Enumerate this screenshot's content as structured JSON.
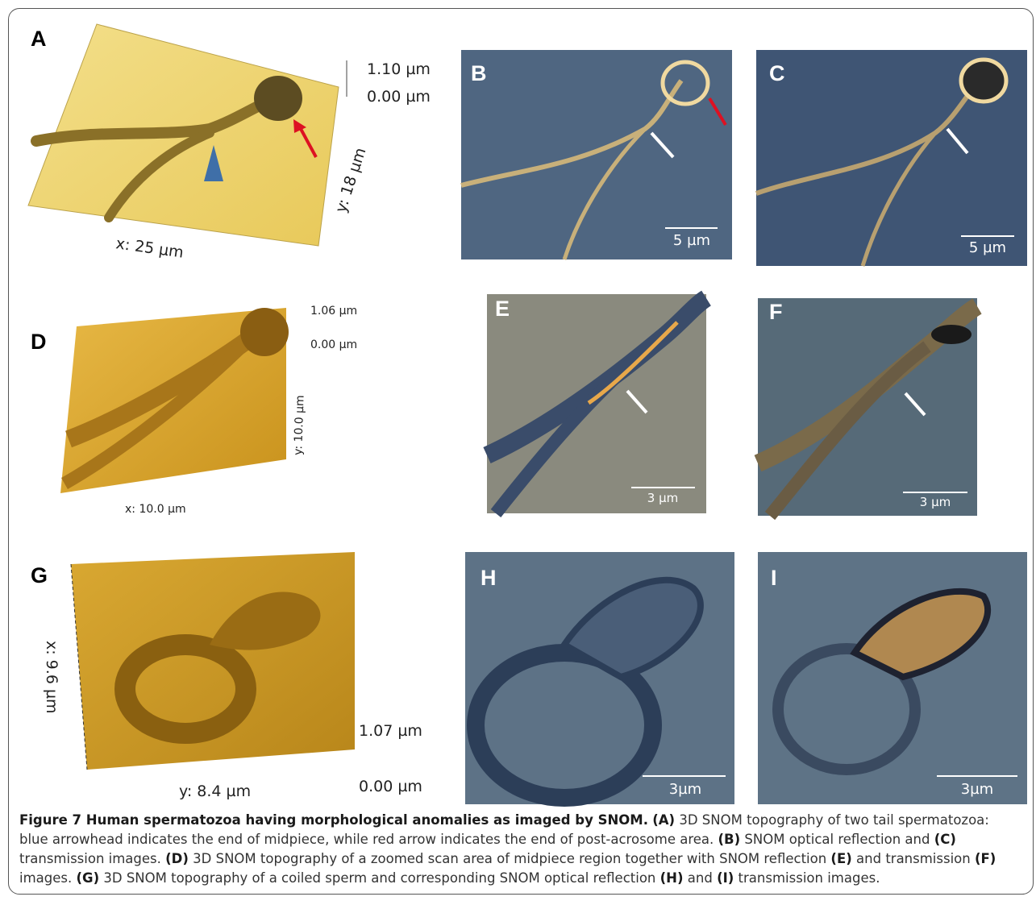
{
  "panels": {
    "a": {
      "label": "A",
      "z_top": "1.10 µm",
      "z_bottom": "0.00 µm",
      "y_axis": "y: 18 µm",
      "x_axis": "x: 25 µm"
    },
    "b": {
      "label": "B",
      "scale": "5 µm"
    },
    "c": {
      "label": "C",
      "scale": "5 µm"
    },
    "d": {
      "label": "D",
      "z_top": "1.06 µm",
      "z_bottom": "0.00 µm",
      "y_axis": "y: 10.0 µm",
      "x_axis": "x: 10.0 µm"
    },
    "e": {
      "label": "E",
      "scale": "3 µm"
    },
    "f": {
      "label": "F",
      "scale": "3 µm"
    },
    "g": {
      "label": "G",
      "x_axis": "x: 9.6 µm",
      "z_top": "1.07 µm",
      "z_bottom": "0.00 µm",
      "y_axis": "y: 8.4 µm"
    },
    "h": {
      "label": "H",
      "scale": "3µm"
    },
    "i": {
      "label": "I",
      "scale": "3µm"
    }
  },
  "caption": {
    "title": "Figure 7 Human spermatozoa having morphological anomalies as imaged by SNOM.",
    "runs": [
      "(A)",
      " 3D SNOM topography of two tail spermatozoa: blue arrowhead indicates the end of midpiece, while red arrow indicates the end of post-acrosome area. ",
      "(B)",
      " SNOM optical reflection and ",
      "(C)",
      " transmission images. ",
      "(D)",
      " 3D SNOM topography of a zoomed scan area of midpiece region together with SNOM reflection ",
      "(E)",
      " and transmission ",
      "(F)",
      " images. ",
      "(G)",
      " 3D SNOM topography of a coiled sperm and corresponding SNOM optical reflection ",
      "(H)",
      " and ",
      "(I)",
      " transmission images."
    ]
  }
}
